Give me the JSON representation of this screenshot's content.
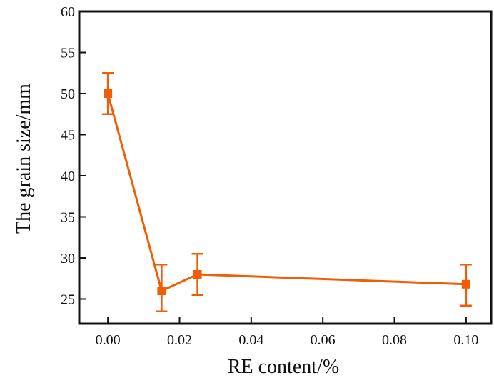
{
  "chart_data": {
    "type": "line",
    "title": "",
    "xlabel": "RE content/%",
    "ylabel": "The grain size/mm",
    "xlim": [
      -0.008,
      0.107
    ],
    "ylim": [
      22,
      60
    ],
    "xticks": [
      0.0,
      0.02,
      0.04,
      0.06,
      0.08,
      0.1
    ],
    "xtick_labels": [
      "0.00",
      "0.02",
      "0.04",
      "0.06",
      "0.08",
      "0.10"
    ],
    "yticks": [
      25,
      30,
      35,
      40,
      45,
      50,
      55,
      60
    ],
    "ytick_labels": [
      "25",
      "30",
      "35",
      "40",
      "45",
      "50",
      "55",
      "60"
    ],
    "grid": false,
    "legend": "none",
    "series": [
      {
        "color": "#f25c05",
        "marker": "square",
        "x": [
          0.0,
          0.015,
          0.025,
          0.1
        ],
        "y": [
          50.0,
          26.0,
          28.0,
          26.8
        ],
        "err_low": [
          47.5,
          23.5,
          25.5,
          24.2
        ],
        "err_high": [
          52.5,
          29.2,
          30.5,
          29.2
        ]
      }
    ]
  }
}
